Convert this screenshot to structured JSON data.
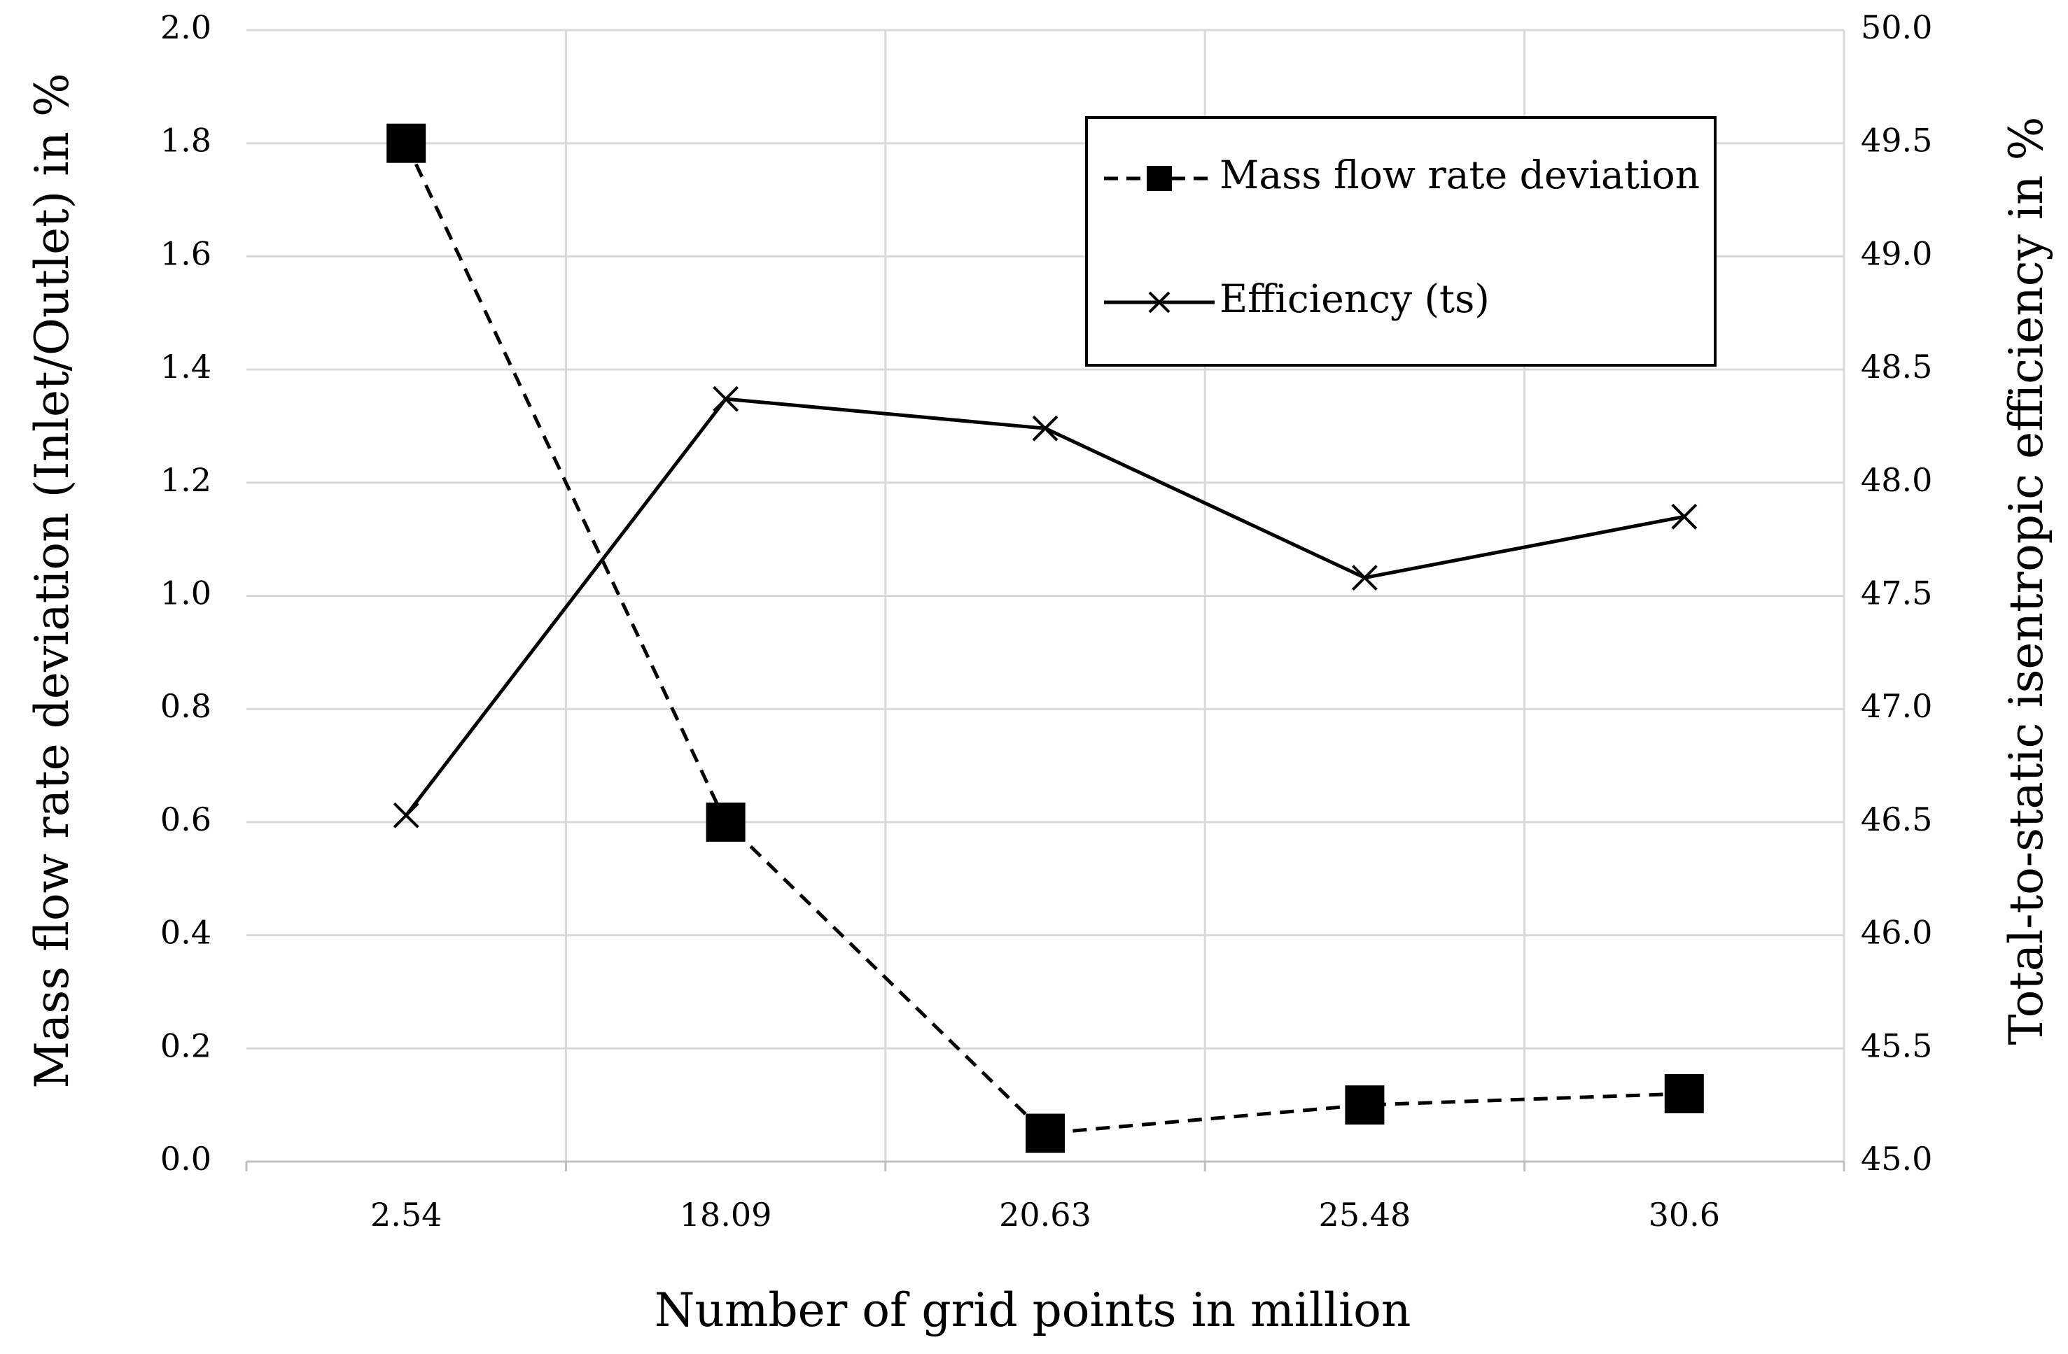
{
  "chart_data": {
    "type": "line",
    "categories": [
      "2.54",
      "18.09",
      "20.63",
      "25.48",
      "30.6"
    ],
    "xlabel": "Number of grid points in million",
    "ylabel_left": "Mass flow rate deviation (Inlet/Outlet) in %",
    "ylabel_right": "Total-to-static isentropic efficiency in %",
    "y_left": {
      "min": 0,
      "max": 2,
      "step": 0.2,
      "tick_labels": [
        "0.0",
        "0.2",
        "0.4",
        "0.6",
        "0.8",
        "1.0",
        "1.2",
        "1.4",
        "1.6",
        "1.8",
        "2.0"
      ]
    },
    "y_right": {
      "min": 45,
      "max": 50,
      "step": 0.5,
      "tick_labels": [
        "45.0",
        "45.5",
        "46.0",
        "46.5",
        "47.0",
        "47.5",
        "48.0",
        "48.5",
        "49.0",
        "49.5",
        "50.0"
      ]
    },
    "grid": true,
    "legend_position": "top-right",
    "series": [
      {
        "name": "Mass flow rate deviation",
        "axis": "left",
        "line_style": "dashed",
        "marker": "square",
        "values": [
          1.8,
          0.6,
          0.05,
          0.1,
          0.12
        ]
      },
      {
        "name": "Efficiency (ts)",
        "axis": "right",
        "line_style": "solid",
        "marker": "x",
        "values": [
          46.53,
          48.37,
          48.24,
          47.58,
          47.85
        ]
      }
    ]
  }
}
